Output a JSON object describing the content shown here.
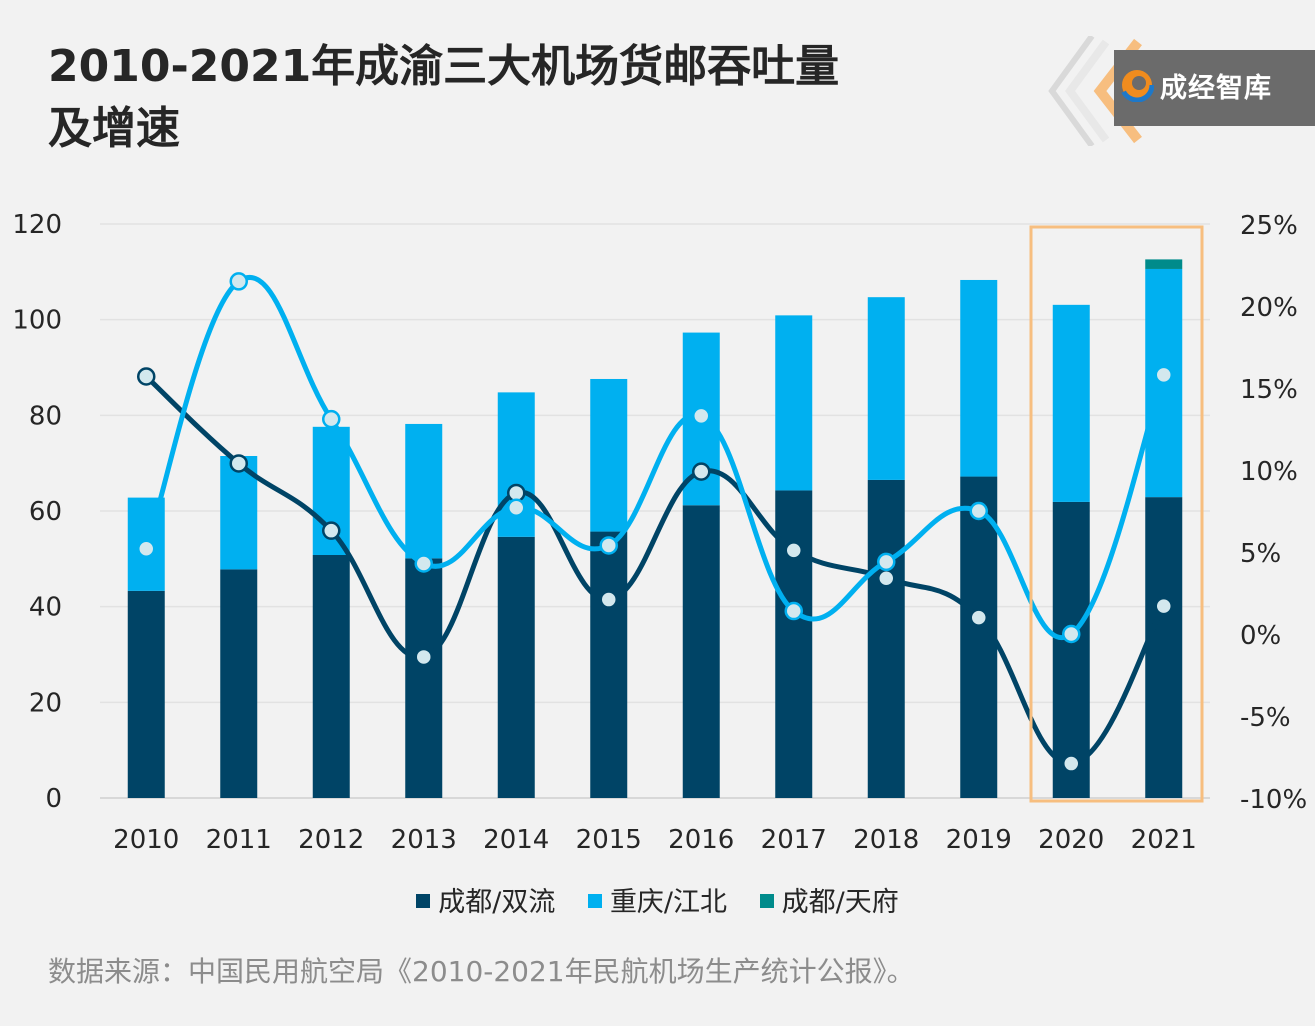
{
  "title_line1": "2010-2021年成渝三大机场货邮吞吐量",
  "title_line2": "及增速",
  "logo_text": "成经智库",
  "source": "数据来源：中国民用航空局《2010-2021年民航机场生产统计公报》。",
  "colors": {
    "chengdu_shuangliu": "#004466",
    "chongqing_jiangbei": "#00b0f0",
    "chengdu_tianfu": "#008b8b",
    "highlight_box": "#f7be7f",
    "background": "#f2f2f2"
  },
  "chart_data": {
    "type": "bar",
    "stacked": true,
    "categories": [
      "2010",
      "2011",
      "2012",
      "2013",
      "2014",
      "2015",
      "2016",
      "2017",
      "2018",
      "2019",
      "2020",
      "2021"
    ],
    "y_left": {
      "ylim": [
        0,
        120
      ],
      "ticks": [
        "0",
        "20",
        "40",
        "60",
        "80",
        "100",
        "120"
      ]
    },
    "y_right": {
      "ylim": [
        -10,
        25
      ],
      "ticks": [
        "-10%",
        "-5%",
        "0%",
        "5%",
        "10%",
        "15%",
        "20%",
        "25%"
      ]
    },
    "grid": true,
    "legend_position": "bottom",
    "series": [
      {
        "name": "成都/双流",
        "type": "bar",
        "axis": "left",
        "values": [
          43.3,
          47.8,
          50.8,
          50.1,
          54.6,
          55.7,
          61.2,
          64.3,
          66.5,
          67.2,
          61.9,
          62.9
        ]
      },
      {
        "name": "重庆/江北",
        "type": "bar",
        "axis": "left",
        "values": [
          19.5,
          23.7,
          26.8,
          28.1,
          30.2,
          31.9,
          36.1,
          36.6,
          38.2,
          41.1,
          41.2,
          47.7
        ]
      },
      {
        "name": "成都/天府",
        "type": "bar",
        "axis": "left",
        "values": [
          0,
          0,
          0,
          0,
          0,
          0,
          0,
          0,
          0,
          0,
          0,
          2.0
        ]
      },
      {
        "type": "line",
        "axis": "right",
        "color": "#004466",
        "values": [
          15.7,
          10.4,
          6.3,
          -1.4,
          8.6,
          2.1,
          9.9,
          5.1,
          3.4,
          1.0,
          -7.9,
          1.7
        ]
      },
      {
        "type": "line",
        "axis": "right",
        "color": "#00b0f0",
        "values": [
          5.2,
          21.5,
          13.1,
          4.3,
          7.7,
          5.4,
          13.3,
          1.4,
          4.4,
          7.5,
          0.0,
          15.8
        ]
      }
    ],
    "highlight_categories": [
      "2020",
      "2021"
    ]
  }
}
